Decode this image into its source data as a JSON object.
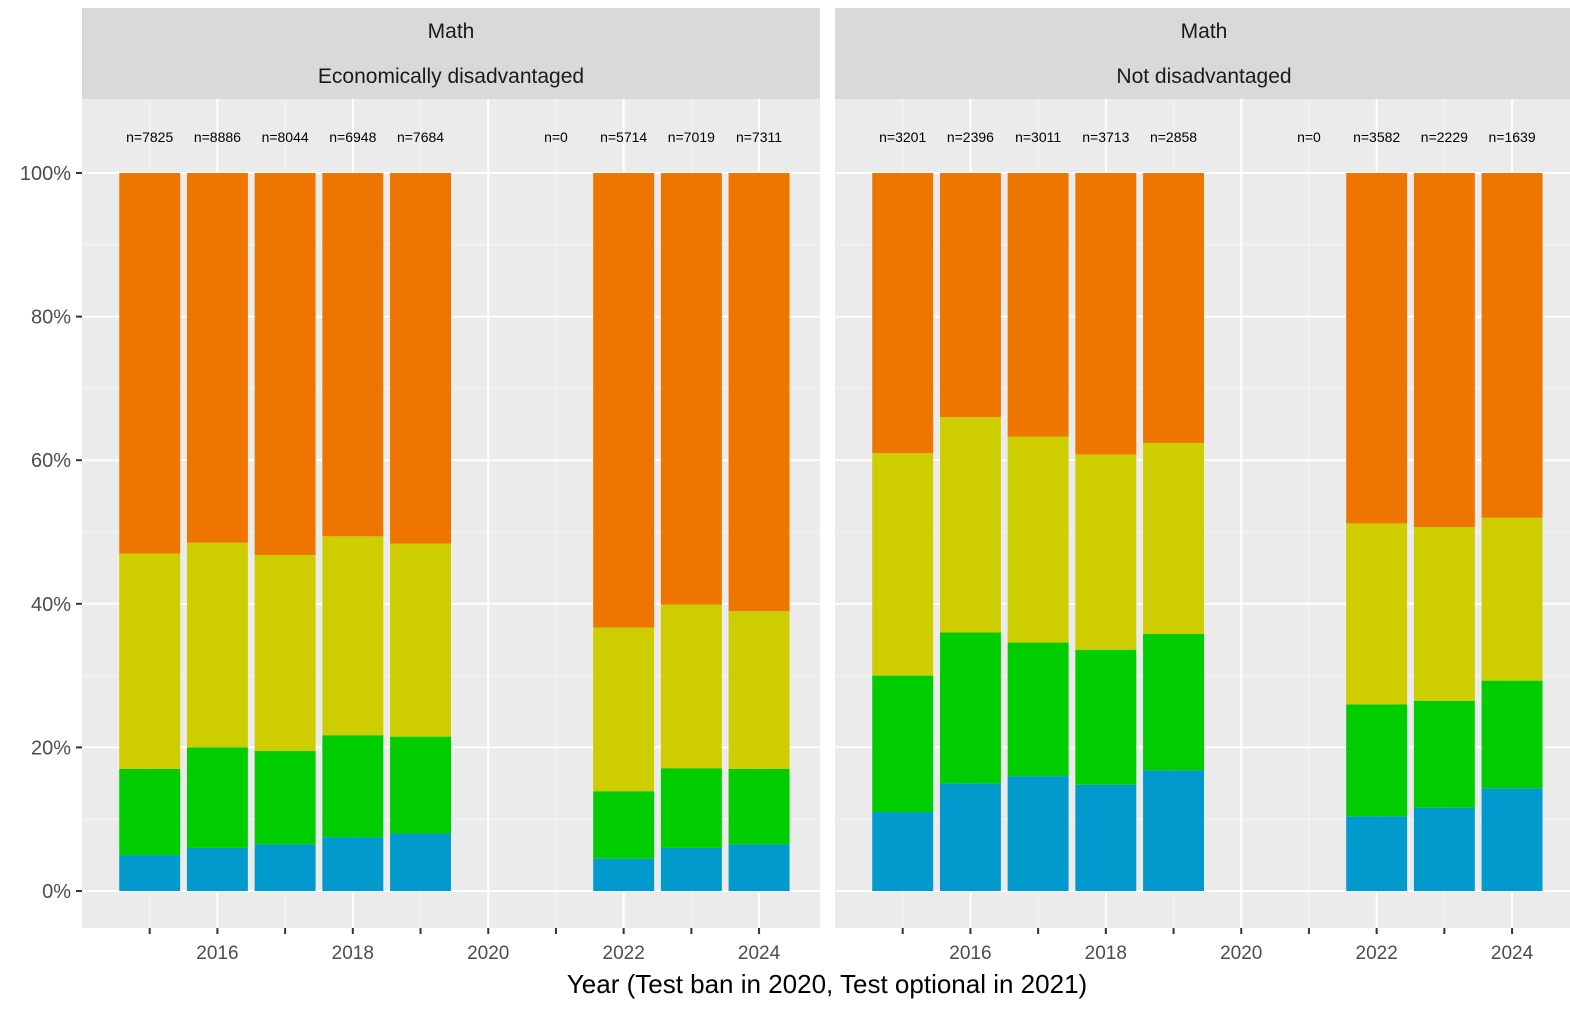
{
  "chart_data": {
    "type": "bar",
    "stacked": true,
    "xlabel": "Year (Test ban in 2020, Test optional in 2021)",
    "ylabel": "",
    "ylim": [
      0,
      1
    ],
    "y_ticks": [
      0,
      0.2,
      0.4,
      0.6,
      0.8,
      1.0
    ],
    "y_tick_labels": [
      "0%",
      "20%",
      "40%",
      "60%",
      "80%",
      "100%"
    ],
    "x_ticks": [
      2016,
      2018,
      2020,
      2022,
      2024
    ],
    "x_tick_labels": [
      "2016",
      "2018",
      "2020",
      "2022",
      "2024"
    ],
    "x_range": [
      2014,
      2024.9
    ],
    "years": [
      2015,
      2016,
      2017,
      2018,
      2019,
      2020,
      2021,
      2022,
      2023,
      2024
    ],
    "grid": true,
    "legend": "none",
    "colors": [
      "#009ACD",
      "#00CD00",
      "#CDCD00",
      "#EE7600"
    ],
    "panels": [
      {
        "strip_top": "Math",
        "strip_bottom": "Economically disadvantaged",
        "bars": [
          {
            "year": 2015,
            "n_label": "n=7825",
            "segments": [
              0.05,
              0.12,
              0.3,
              0.53
            ]
          },
          {
            "year": 2016,
            "n_label": "n=8886",
            "segments": [
              0.06,
              0.14,
              0.285,
              0.515
            ]
          },
          {
            "year": 2017,
            "n_label": "n=8044",
            "segments": [
              0.065,
              0.13,
              0.273,
              0.532
            ]
          },
          {
            "year": 2018,
            "n_label": "n=6948",
            "segments": [
              0.075,
              0.142,
              0.277,
              0.506
            ]
          },
          {
            "year": 2019,
            "n_label": "n=7684",
            "segments": [
              0.08,
              0.135,
              0.269,
              0.516
            ]
          },
          {
            "year": 2021,
            "n_label": "n=0",
            "segments": []
          },
          {
            "year": 2022,
            "n_label": "n=5714",
            "segments": [
              0.045,
              0.094,
              0.228,
              0.633
            ]
          },
          {
            "year": 2023,
            "n_label": "n=7019",
            "segments": [
              0.06,
              0.111,
              0.228,
              0.601
            ]
          },
          {
            "year": 2024,
            "n_label": "n=7311",
            "segments": [
              0.065,
              0.105,
              0.22,
              0.61
            ]
          }
        ]
      },
      {
        "strip_top": "Math",
        "strip_bottom": "Not disadvantaged",
        "bars": [
          {
            "year": 2015,
            "n_label": "n=3201",
            "segments": [
              0.11,
              0.19,
              0.31,
              0.39
            ]
          },
          {
            "year": 2016,
            "n_label": "n=2396",
            "segments": [
              0.15,
              0.21,
              0.3,
              0.34
            ]
          },
          {
            "year": 2017,
            "n_label": "n=3011",
            "segments": [
              0.16,
              0.186,
              0.287,
              0.367
            ]
          },
          {
            "year": 2018,
            "n_label": "n=3713",
            "segments": [
              0.148,
              0.188,
              0.272,
              0.392
            ]
          },
          {
            "year": 2019,
            "n_label": "n=2858",
            "segments": [
              0.168,
              0.19,
              0.266,
              0.376
            ]
          },
          {
            "year": 2021,
            "n_label": "n=0",
            "segments": []
          },
          {
            "year": 2022,
            "n_label": "n=3582",
            "segments": [
              0.104,
              0.156,
              0.252,
              0.488
            ]
          },
          {
            "year": 2023,
            "n_label": "n=2229",
            "segments": [
              0.116,
              0.149,
              0.242,
              0.493
            ]
          },
          {
            "year": 2024,
            "n_label": "n=1639",
            "segments": [
              0.143,
              0.15,
              0.227,
              0.48
            ]
          }
        ]
      }
    ]
  }
}
